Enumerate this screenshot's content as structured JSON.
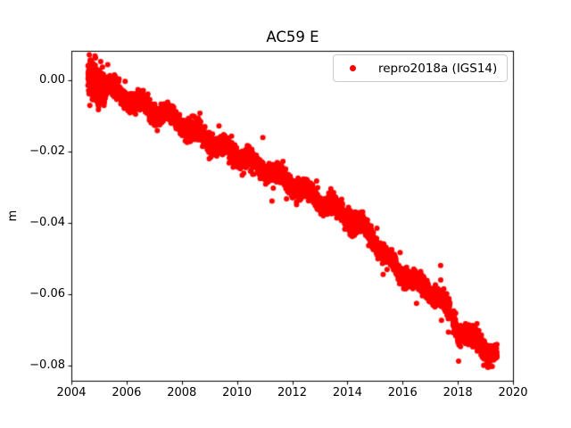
{
  "figure": {
    "background": "#ffffff",
    "text_color": "#000000",
    "spine_color": "#000000"
  },
  "chart_data": {
    "type": "scatter",
    "title": "AC59 E",
    "xlabel": "",
    "ylabel": "m",
    "grid": false,
    "xlim": [
      2004,
      2020
    ],
    "ylim": [
      -0.0843,
      0.0081
    ],
    "x_ticks": [
      2004,
      2006,
      2008,
      2010,
      2012,
      2014,
      2016,
      2018,
      2020
    ],
    "x_tick_labels": [
      "2004",
      "2006",
      "2008",
      "2010",
      "2012",
      "2014",
      "2016",
      "2018",
      "2020"
    ],
    "y_ticks": [
      0.0,
      -0.02,
      -0.04,
      -0.06,
      -0.08
    ],
    "y_tick_labels": [
      "0.00",
      "−0.02",
      "−0.04",
      "−0.06",
      "−0.08"
    ],
    "legend": {
      "position": "upper right",
      "label": "repro2018a (IGS14)",
      "marker_color": "#ff0000",
      "frame_color": "#cccccc"
    },
    "series": [
      {
        "name": "repro2018a (IGS14)",
        "marker": "dot",
        "color": "#ff0000",
        "marker_diameter_px": 6,
        "x_start": 2004.6,
        "x_end": 2019.42,
        "points_per_year": 365,
        "trend_anchors": [
          [
            2004.6,
            0.001
          ],
          [
            2004.75,
            0.0
          ],
          [
            2005.0,
            -0.001
          ],
          [
            2005.5,
            -0.0025
          ],
          [
            2006.0,
            -0.005
          ],
          [
            2006.5,
            -0.007
          ],
          [
            2007.0,
            -0.0088
          ],
          [
            2007.5,
            -0.01
          ],
          [
            2008.0,
            -0.0118
          ],
          [
            2008.5,
            -0.0145
          ],
          [
            2009.0,
            -0.0168
          ],
          [
            2009.5,
            -0.019
          ],
          [
            2010.0,
            -0.021
          ],
          [
            2010.5,
            -0.023
          ],
          [
            2011.0,
            -0.025
          ],
          [
            2011.5,
            -0.027
          ],
          [
            2012.0,
            -0.029
          ],
          [
            2012.5,
            -0.0315
          ],
          [
            2013.0,
            -0.0338
          ],
          [
            2013.5,
            -0.036
          ],
          [
            2014.0,
            -0.038
          ],
          [
            2014.5,
            -0.041
          ],
          [
            2015.0,
            -0.045
          ],
          [
            2015.5,
            -0.0505
          ],
          [
            2016.0,
            -0.054
          ],
          [
            2016.5,
            -0.057
          ],
          [
            2017.0,
            -0.059
          ],
          [
            2017.3,
            -0.0605
          ],
          [
            2017.55,
            -0.0635
          ],
          [
            2017.8,
            -0.0665
          ],
          [
            2018.0,
            -0.07
          ],
          [
            2018.3,
            -0.0715
          ],
          [
            2018.6,
            -0.073
          ],
          [
            2018.9,
            -0.0745
          ],
          [
            2019.15,
            -0.0757
          ],
          [
            2019.42,
            -0.077
          ]
        ],
        "seasonal_amplitude": 0.0012,
        "seasonal_phase": 0.3,
        "noise_sigma": 0.0012,
        "early_noise_sigma": 0.0028,
        "early_until": 2005.2,
        "outlier_fraction": 0.015,
        "outlier_sigma": 0.0035,
        "gaps": [
          [
            2017.72,
            2017.82
          ]
        ],
        "seed": 42
      }
    ]
  }
}
